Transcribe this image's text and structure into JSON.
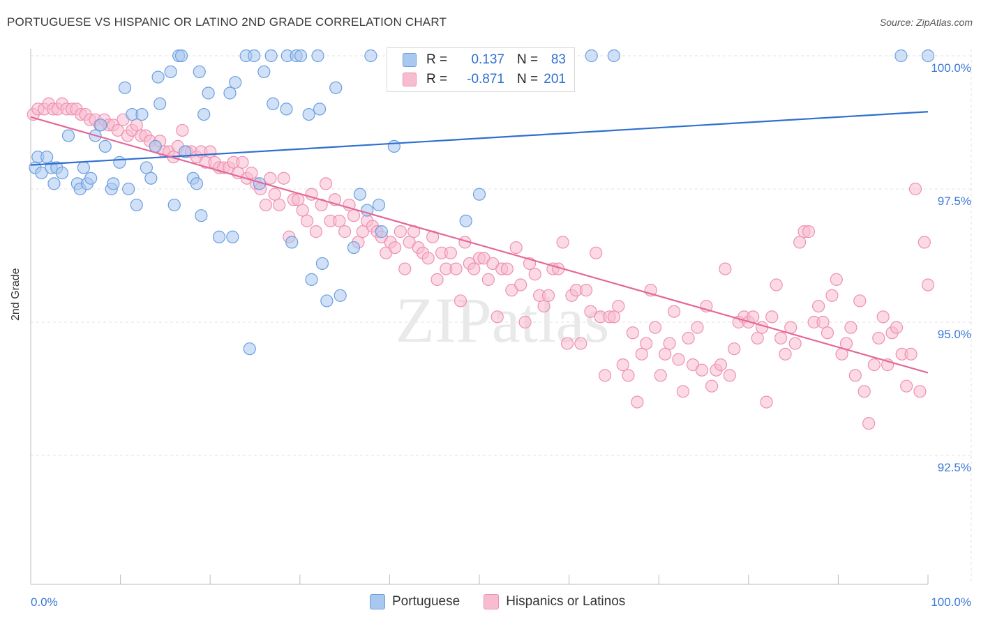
{
  "title": "PORTUGUESE VS HISPANIC OR LATINO 2ND GRADE CORRELATION CHART",
  "source": "Source: ZipAtlas.com",
  "watermark": "ZIPatlas",
  "legend_stats": {
    "portuguese": {
      "r_label": "R =",
      "r_value": "0.137",
      "n_label": "N =",
      "n_value": "83"
    },
    "hispanic": {
      "r_label": "R =",
      "r_value": "-0.871",
      "n_label": "N =",
      "n_value": "201"
    }
  },
  "colors": {
    "portuguese_fill": "#a9c8f0",
    "portuguese_stroke": "#6b9ee0",
    "portuguese_line": "#2e6fd1",
    "hispanic_fill": "#f8bcd0",
    "hispanic_stroke": "#ef90b0",
    "hispanic_line": "#e4689a",
    "tick_text": "#3a78d4",
    "grid": "#e2e2e2"
  },
  "chart_data": {
    "type": "scatter",
    "title": "PORTUGUESE VS HISPANIC OR LATINO 2ND GRADE CORRELATION CHART",
    "xlabel": "",
    "ylabel": "2nd Grade",
    "xlim": [
      0,
      100
    ],
    "ylim": [
      90.0,
      100.2
    ],
    "x_tick_labels": [
      "0.0%",
      "100.0%"
    ],
    "y_ticks": [
      92.5,
      95.0,
      97.5,
      100.0
    ],
    "y_tick_labels": [
      "92.5%",
      "95.0%",
      "97.5%",
      "100.0%"
    ],
    "grid": true,
    "legend_position": "bottom",
    "series": [
      {
        "name": "Portuguese",
        "trend": {
          "x": [
            0,
            100
          ],
          "y": [
            97.95,
            98.95
          ]
        },
        "points": [
          [
            0.5,
            97.9
          ],
          [
            0.8,
            98.1
          ],
          [
            1.2,
            97.8
          ],
          [
            1.8,
            98.1
          ],
          [
            2.3,
            97.9
          ],
          [
            2.6,
            97.6
          ],
          [
            2.9,
            97.9
          ],
          [
            3.5,
            97.8
          ],
          [
            4.2,
            98.5
          ],
          [
            5.2,
            97.6
          ],
          [
            5.5,
            97.5
          ],
          [
            5.9,
            97.9
          ],
          [
            6.3,
            97.6
          ],
          [
            6.7,
            97.7
          ],
          [
            7.2,
            98.5
          ],
          [
            7.8,
            98.7
          ],
          [
            8.3,
            98.3
          ],
          [
            9.0,
            97.5
          ],
          [
            9.2,
            97.6
          ],
          [
            9.9,
            98.0
          ],
          [
            10.5,
            99.4
          ],
          [
            10.9,
            97.5
          ],
          [
            11.3,
            98.9
          ],
          [
            11.8,
            97.2
          ],
          [
            12.4,
            98.9
          ],
          [
            12.9,
            97.9
          ],
          [
            13.4,
            97.7
          ],
          [
            13.9,
            98.3
          ],
          [
            14.4,
            99.1
          ],
          [
            14.2,
            99.6
          ],
          [
            15.6,
            99.7
          ],
          [
            16.5,
            100.0
          ],
          [
            16.8,
            100.0
          ],
          [
            17.2,
            98.2
          ],
          [
            16.0,
            97.2
          ],
          [
            18.1,
            97.7
          ],
          [
            18.5,
            97.6
          ],
          [
            18.8,
            99.7
          ],
          [
            19.0,
            97.0
          ],
          [
            19.3,
            98.9
          ],
          [
            19.8,
            99.3
          ],
          [
            21.0,
            96.6
          ],
          [
            22.2,
            99.3
          ],
          [
            22.5,
            96.6
          ],
          [
            22.8,
            99.5
          ],
          [
            24.0,
            100.0
          ],
          [
            24.4,
            94.5
          ],
          [
            24.9,
            100.0
          ],
          [
            25.5,
            97.6
          ],
          [
            26.0,
            99.7
          ],
          [
            27.0,
            99.1
          ],
          [
            26.8,
            100.0
          ],
          [
            28.6,
            100.0
          ],
          [
            28.5,
            99.0
          ],
          [
            29.1,
            96.5
          ],
          [
            29.6,
            100.0
          ],
          [
            30.1,
            100.0
          ],
          [
            31.0,
            98.9
          ],
          [
            31.3,
            95.8
          ],
          [
            32.0,
            100.0
          ],
          [
            32.2,
            99.0
          ],
          [
            32.5,
            96.1
          ],
          [
            33.0,
            95.4
          ],
          [
            34.0,
            99.4
          ],
          [
            34.5,
            95.5
          ],
          [
            36.0,
            96.4
          ],
          [
            36.7,
            97.4
          ],
          [
            37.5,
            97.1
          ],
          [
            37.9,
            100.0
          ],
          [
            38.8,
            97.2
          ],
          [
            39.1,
            96.7
          ],
          [
            40.5,
            98.3
          ],
          [
            42.3,
            100.0
          ],
          [
            44.0,
            100.0
          ],
          [
            48.5,
            96.9
          ],
          [
            50.0,
            97.4
          ],
          [
            52.5,
            100.0
          ],
          [
            55.6,
            100.0
          ],
          [
            59.0,
            100.0
          ],
          [
            62.5,
            100.0
          ],
          [
            65.0,
            100.0
          ],
          [
            97.0,
            100.0
          ],
          [
            100.0,
            100.0
          ]
        ]
      },
      {
        "name": "Hispanics or Latinos",
        "trend": {
          "x": [
            0,
            100
          ],
          "y": [
            98.85,
            94.05
          ]
        },
        "points": [
          [
            0.3,
            98.9
          ],
          [
            0.8,
            99.0
          ],
          [
            1.5,
            99.0
          ],
          [
            2.0,
            99.1
          ],
          [
            2.5,
            99.0
          ],
          [
            3.0,
            99.0
          ],
          [
            3.5,
            99.1
          ],
          [
            4.0,
            99.0
          ],
          [
            4.6,
            99.0
          ],
          [
            5.1,
            99.0
          ],
          [
            5.6,
            98.9
          ],
          [
            6.1,
            98.9
          ],
          [
            6.6,
            98.8
          ],
          [
            7.2,
            98.8
          ],
          [
            7.7,
            98.7
          ],
          [
            8.2,
            98.8
          ],
          [
            8.7,
            98.7
          ],
          [
            9.2,
            98.7
          ],
          [
            9.7,
            98.6
          ],
          [
            10.3,
            98.8
          ],
          [
            10.8,
            98.5
          ],
          [
            11.3,
            98.6
          ],
          [
            11.8,
            98.7
          ],
          [
            12.3,
            98.5
          ],
          [
            12.8,
            98.5
          ],
          [
            13.3,
            98.4
          ],
          [
            13.9,
            98.3
          ],
          [
            14.4,
            98.4
          ],
          [
            14.9,
            98.2
          ],
          [
            15.4,
            98.2
          ],
          [
            15.9,
            98.1
          ],
          [
            16.4,
            98.3
          ],
          [
            16.9,
            98.6
          ],
          [
            17.4,
            98.2
          ],
          [
            17.9,
            98.2
          ],
          [
            18.5,
            98.1
          ],
          [
            19.0,
            98.2
          ],
          [
            19.5,
            98.0
          ],
          [
            20.0,
            98.2
          ],
          [
            20.5,
            98.0
          ],
          [
            21.0,
            97.9
          ],
          [
            21.5,
            97.9
          ],
          [
            22.1,
            97.9
          ],
          [
            22.6,
            98.0
          ],
          [
            23.1,
            97.8
          ],
          [
            23.6,
            98.0
          ],
          [
            24.1,
            97.7
          ],
          [
            24.6,
            97.8
          ],
          [
            25.1,
            97.6
          ],
          [
            25.6,
            97.5
          ],
          [
            26.2,
            97.2
          ],
          [
            26.7,
            97.7
          ],
          [
            27.2,
            97.4
          ],
          [
            27.7,
            97.2
          ],
          [
            28.2,
            97.7
          ],
          [
            28.8,
            96.6
          ],
          [
            29.3,
            97.3
          ],
          [
            29.8,
            97.3
          ],
          [
            30.3,
            97.1
          ],
          [
            30.8,
            96.9
          ],
          [
            31.3,
            97.4
          ],
          [
            31.8,
            96.7
          ],
          [
            32.4,
            97.2
          ],
          [
            32.9,
            97.6
          ],
          [
            33.4,
            96.9
          ],
          [
            33.9,
            97.3
          ],
          [
            34.4,
            96.9
          ],
          [
            35.0,
            96.7
          ],
          [
            35.5,
            97.2
          ],
          [
            36.0,
            97.0
          ],
          [
            36.5,
            96.5
          ],
          [
            37.0,
            96.7
          ],
          [
            37.5,
            96.9
          ],
          [
            38.1,
            96.8
          ],
          [
            38.6,
            96.7
          ],
          [
            39.1,
            96.6
          ],
          [
            39.6,
            96.3
          ],
          [
            40.1,
            96.5
          ],
          [
            40.6,
            96.4
          ],
          [
            41.2,
            96.7
          ],
          [
            41.7,
            96.0
          ],
          [
            42.2,
            96.5
          ],
          [
            42.7,
            96.7
          ],
          [
            43.2,
            96.4
          ],
          [
            43.7,
            96.3
          ],
          [
            44.3,
            96.2
          ],
          [
            44.8,
            96.6
          ],
          [
            45.3,
            95.8
          ],
          [
            45.8,
            96.3
          ],
          [
            46.3,
            96.0
          ],
          [
            46.8,
            96.3
          ],
          [
            47.4,
            96.0
          ],
          [
            47.9,
            95.4
          ],
          [
            48.4,
            96.5
          ],
          [
            48.9,
            96.1
          ],
          [
            49.4,
            96.0
          ],
          [
            50.0,
            96.2
          ],
          [
            50.5,
            96.2
          ],
          [
            51.0,
            95.8
          ],
          [
            51.5,
            96.1
          ],
          [
            52.0,
            95.1
          ],
          [
            52.5,
            96.0
          ],
          [
            53.1,
            96.0
          ],
          [
            53.6,
            95.6
          ],
          [
            54.1,
            96.4
          ],
          [
            54.6,
            95.7
          ],
          [
            55.1,
            95.0
          ],
          [
            55.6,
            96.1
          ],
          [
            56.2,
            95.9
          ],
          [
            56.7,
            95.5
          ],
          [
            57.2,
            95.3
          ],
          [
            57.7,
            95.5
          ],
          [
            58.2,
            96.0
          ],
          [
            58.8,
            96.0
          ],
          [
            59.3,
            96.5
          ],
          [
            59.8,
            94.6
          ],
          [
            60.3,
            95.5
          ],
          [
            60.8,
            95.6
          ],
          [
            61.3,
            94.6
          ],
          [
            61.9,
            95.6
          ],
          [
            62.4,
            95.2
          ],
          [
            63.0,
            96.3
          ],
          [
            63.5,
            95.1
          ],
          [
            64.0,
            94.0
          ],
          [
            64.5,
            95.1
          ],
          [
            65.0,
            95.1
          ],
          [
            65.5,
            95.3
          ],
          [
            66.0,
            94.2
          ],
          [
            66.6,
            94.0
          ],
          [
            67.1,
            94.8
          ],
          [
            67.6,
            93.5
          ],
          [
            68.1,
            94.4
          ],
          [
            68.6,
            94.6
          ],
          [
            69.1,
            95.6
          ],
          [
            69.6,
            94.9
          ],
          [
            70.2,
            94.0
          ],
          [
            70.7,
            94.4
          ],
          [
            71.2,
            94.6
          ],
          [
            71.7,
            95.2
          ],
          [
            72.2,
            94.3
          ],
          [
            72.7,
            93.7
          ],
          [
            73.3,
            94.7
          ],
          [
            73.8,
            94.2
          ],
          [
            74.3,
            94.9
          ],
          [
            74.8,
            94.1
          ],
          [
            75.3,
            95.3
          ],
          [
            75.9,
            93.8
          ],
          [
            76.4,
            94.1
          ],
          [
            76.9,
            94.2
          ],
          [
            77.4,
            96.0
          ],
          [
            77.9,
            94.0
          ],
          [
            78.4,
            94.5
          ],
          [
            78.9,
            95.0
          ],
          [
            79.5,
            95.1
          ],
          [
            80.0,
            95.0
          ],
          [
            80.5,
            95.1
          ],
          [
            81.0,
            94.7
          ],
          [
            81.5,
            94.9
          ],
          [
            82.0,
            93.5
          ],
          [
            82.6,
            95.1
          ],
          [
            83.1,
            95.7
          ],
          [
            83.6,
            94.7
          ],
          [
            84.1,
            94.4
          ],
          [
            84.7,
            94.9
          ],
          [
            85.2,
            94.6
          ],
          [
            85.7,
            96.5
          ],
          [
            86.2,
            96.7
          ],
          [
            86.7,
            96.7
          ],
          [
            87.3,
            95.0
          ],
          [
            87.8,
            95.3
          ],
          [
            88.3,
            95.0
          ],
          [
            88.8,
            94.8
          ],
          [
            89.3,
            95.5
          ],
          [
            89.8,
            95.8
          ],
          [
            90.4,
            94.4
          ],
          [
            90.9,
            94.6
          ],
          [
            91.4,
            94.9
          ],
          [
            91.9,
            94.0
          ],
          [
            92.4,
            95.4
          ],
          [
            92.9,
            93.7
          ],
          [
            93.4,
            93.1
          ],
          [
            94.0,
            94.2
          ],
          [
            94.5,
            94.7
          ],
          [
            95.0,
            95.1
          ],
          [
            95.5,
            94.2
          ],
          [
            96.0,
            94.8
          ],
          [
            96.5,
            94.9
          ],
          [
            97.1,
            94.4
          ],
          [
            97.6,
            93.8
          ],
          [
            98.1,
            94.4
          ],
          [
            98.6,
            97.5
          ],
          [
            99.1,
            93.7
          ],
          [
            99.6,
            96.5
          ],
          [
            100.0,
            95.7
          ]
        ]
      }
    ]
  },
  "bottom_legend": [
    {
      "label": "Portuguese"
    },
    {
      "label": "Hispanics or Latinos"
    }
  ]
}
